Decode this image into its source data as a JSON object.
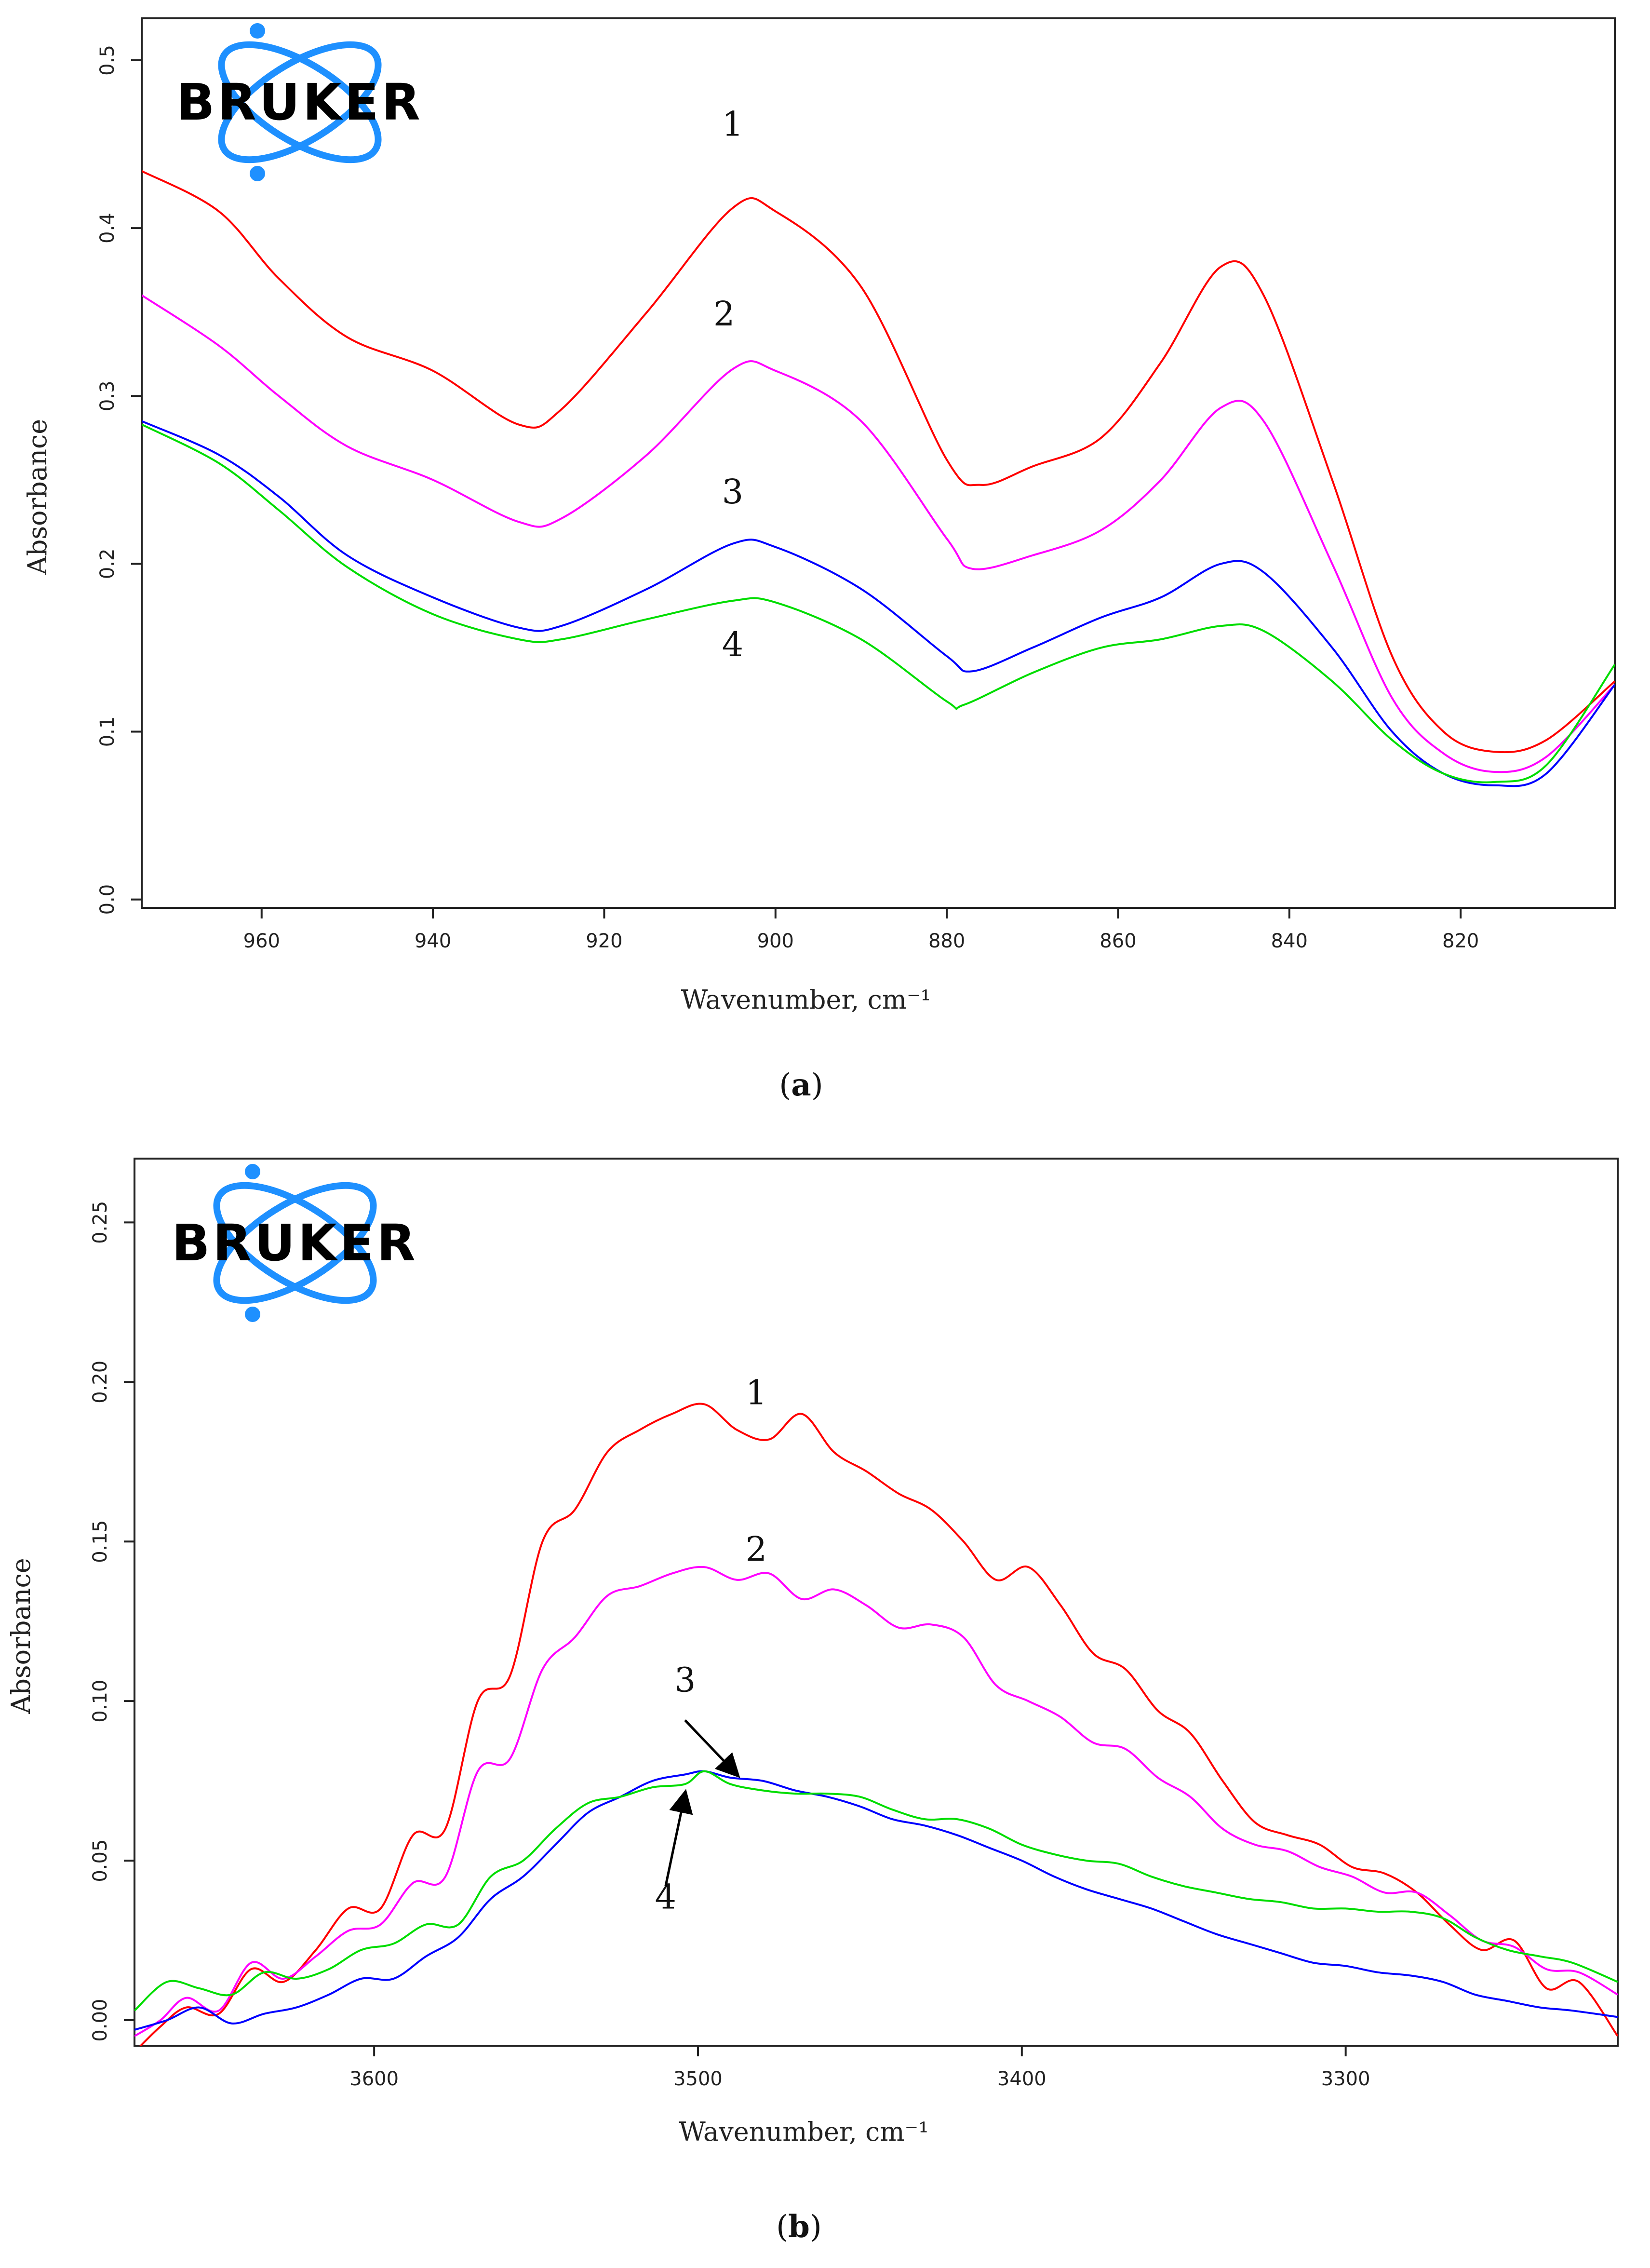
{
  "chart_data": [
    {
      "type": "line",
      "caption": "a",
      "xlabel": "Wavenumber, cm⁻¹",
      "ylabel": "Absorbance",
      "xlim": [
        974,
        802
      ],
      "ylim": [
        -0.005,
        0.525
      ],
      "xticks": [
        960,
        940,
        920,
        900,
        880,
        860,
        840,
        820
      ],
      "xtick_labels": [
        "960",
        "940",
        "920",
        "900",
        "880",
        "860",
        "840",
        "820"
      ],
      "yticks": [
        0.0,
        0.1,
        0.2,
        0.3,
        0.4,
        0.5
      ],
      "ytick_labels": [
        "0.0",
        "0.1",
        "0.2",
        "0.3",
        "0.4",
        "0.5"
      ],
      "logo": "BRUKER",
      "series": [
        {
          "name": "1",
          "color": "#ff0000",
          "x": [
            974,
            965,
            958,
            950,
            940,
            930,
            925,
            915,
            905,
            900,
            890,
            880,
            876,
            870,
            862,
            855,
            848,
            843,
            835,
            828,
            822,
            816,
            810,
            802
          ],
          "y": [
            0.434,
            0.41,
            0.37,
            0.335,
            0.315,
            0.283,
            0.292,
            0.35,
            0.412,
            0.41,
            0.365,
            0.262,
            0.247,
            0.258,
            0.275,
            0.32,
            0.377,
            0.36,
            0.25,
            0.145,
            0.1,
            0.088,
            0.095,
            0.13
          ]
        },
        {
          "name": "2",
          "color": "#ff00ff",
          "x": [
            974,
            965,
            958,
            950,
            940,
            930,
            925,
            915,
            905,
            900,
            890,
            880,
            877,
            870,
            862,
            855,
            848,
            843,
            835,
            828,
            822,
            816,
            810,
            802
          ],
          "y": [
            0.36,
            0.33,
            0.3,
            0.27,
            0.25,
            0.225,
            0.227,
            0.265,
            0.316,
            0.315,
            0.285,
            0.215,
            0.197,
            0.205,
            0.22,
            0.25,
            0.293,
            0.285,
            0.2,
            0.12,
            0.087,
            0.076,
            0.085,
            0.128
          ]
        },
        {
          "name": "3",
          "color": "#0000ff",
          "x": [
            974,
            965,
            958,
            950,
            940,
            930,
            925,
            915,
            905,
            900,
            890,
            880,
            877,
            870,
            862,
            855,
            848,
            843,
            835,
            828,
            822,
            816,
            810,
            802
          ],
          "y": [
            0.285,
            0.265,
            0.24,
            0.205,
            0.18,
            0.162,
            0.163,
            0.185,
            0.212,
            0.21,
            0.185,
            0.145,
            0.136,
            0.15,
            0.168,
            0.18,
            0.2,
            0.195,
            0.15,
            0.1,
            0.075,
            0.068,
            0.075,
            0.128
          ]
        },
        {
          "name": "4",
          "color": "#00dd00",
          "x": [
            974,
            965,
            958,
            950,
            940,
            930,
            925,
            915,
            905,
            900,
            890,
            880,
            878,
            870,
            862,
            855,
            848,
            843,
            835,
            828,
            822,
            816,
            810,
            802
          ],
          "y": [
            0.283,
            0.26,
            0.232,
            0.198,
            0.17,
            0.155,
            0.155,
            0.167,
            0.178,
            0.177,
            0.155,
            0.118,
            0.116,
            0.135,
            0.15,
            0.155,
            0.163,
            0.16,
            0.13,
            0.095,
            0.075,
            0.07,
            0.08,
            0.14
          ]
        }
      ],
      "labels": [
        {
          "text": "1",
          "x": 905,
          "y": 0.455
        },
        {
          "text": "2",
          "x": 906,
          "y": 0.342
        },
        {
          "text": "3",
          "x": 905,
          "y": 0.236
        },
        {
          "text": "4",
          "x": 905,
          "y": 0.145
        }
      ]
    },
    {
      "type": "line",
      "caption": "b",
      "xlabel": "Wavenumber, cm⁻¹",
      "ylabel": "Absorbance",
      "xlim": [
        3674,
        3216
      ],
      "ylim": [
        -0.008,
        0.27
      ],
      "xticks": [
        3600,
        3500,
        3400,
        3300
      ],
      "xtick_labels": [
        "3600",
        "3500",
        "3400",
        "3300"
      ],
      "yticks": [
        0.0,
        0.05,
        0.1,
        0.15,
        0.2,
        0.25
      ],
      "ytick_labels": [
        "0.00",
        "0.05",
        "0.10",
        "0.15",
        "0.20",
        "0.25"
      ],
      "logo": "BRUKER",
      "series": [
        {
          "name": "1",
          "color": "#ff0000",
          "x": [
            3674,
            3666,
            3658,
            3648,
            3638,
            3628,
            3618,
            3608,
            3598,
            3588,
            3578,
            3568,
            3558,
            3548,
            3538,
            3528,
            3518,
            3508,
            3498,
            3488,
            3478,
            3468,
            3458,
            3448,
            3438,
            3428,
            3418,
            3408,
            3398,
            3388,
            3378,
            3368,
            3358,
            3348,
            3338,
            3328,
            3318,
            3308,
            3298,
            3288,
            3278,
            3268,
            3258,
            3248,
            3238,
            3228,
            3216
          ],
          "y": [
            -0.01,
            -0.002,
            0.004,
            0.002,
            0.016,
            0.012,
            0.022,
            0.035,
            0.035,
            0.058,
            0.06,
            0.1,
            0.108,
            0.15,
            0.16,
            0.178,
            0.185,
            0.19,
            0.193,
            0.185,
            0.182,
            0.19,
            0.178,
            0.172,
            0.165,
            0.16,
            0.15,
            0.138,
            0.142,
            0.13,
            0.115,
            0.11,
            0.097,
            0.09,
            0.075,
            0.062,
            0.058,
            0.055,
            0.048,
            0.046,
            0.04,
            0.03,
            0.022,
            0.025,
            0.01,
            0.012,
            -0.005
          ]
        },
        {
          "name": "2",
          "color": "#ff00ff",
          "x": [
            3674,
            3666,
            3658,
            3648,
            3638,
            3628,
            3618,
            3608,
            3598,
            3588,
            3578,
            3568,
            3558,
            3548,
            3538,
            3528,
            3518,
            3508,
            3498,
            3488,
            3478,
            3468,
            3458,
            3448,
            3438,
            3428,
            3418,
            3408,
            3398,
            3388,
            3378,
            3368,
            3358,
            3348,
            3338,
            3328,
            3318,
            3308,
            3298,
            3288,
            3278,
            3268,
            3258,
            3248,
            3238,
            3228,
            3216
          ],
          "y": [
            -0.005,
            0.0,
            0.007,
            0.003,
            0.018,
            0.013,
            0.02,
            0.028,
            0.03,
            0.043,
            0.045,
            0.078,
            0.082,
            0.11,
            0.12,
            0.133,
            0.136,
            0.14,
            0.142,
            0.138,
            0.14,
            0.132,
            0.135,
            0.13,
            0.123,
            0.124,
            0.12,
            0.105,
            0.1,
            0.095,
            0.087,
            0.085,
            0.076,
            0.07,
            0.06,
            0.055,
            0.053,
            0.048,
            0.045,
            0.04,
            0.04,
            0.033,
            0.025,
            0.023,
            0.016,
            0.015,
            0.008
          ]
        },
        {
          "name": "3",
          "color": "#0000ff",
          "x": [
            3674,
            3664,
            3654,
            3644,
            3634,
            3624,
            3614,
            3604,
            3594,
            3584,
            3574,
            3564,
            3554,
            3544,
            3534,
            3524,
            3514,
            3504,
            3498,
            3490,
            3480,
            3470,
            3460,
            3450,
            3440,
            3430,
            3420,
            3410,
            3400,
            3390,
            3380,
            3370,
            3360,
            3350,
            3340,
            3330,
            3320,
            3310,
            3300,
            3290,
            3280,
            3270,
            3260,
            3250,
            3240,
            3230,
            3216
          ],
          "y": [
            -0.003,
            0.0,
            0.004,
            -0.001,
            0.002,
            0.004,
            0.008,
            0.013,
            0.013,
            0.02,
            0.026,
            0.038,
            0.045,
            0.055,
            0.065,
            0.07,
            0.075,
            0.077,
            0.078,
            0.076,
            0.075,
            0.072,
            0.07,
            0.067,
            0.063,
            0.061,
            0.058,
            0.054,
            0.05,
            0.045,
            0.041,
            0.038,
            0.035,
            0.031,
            0.027,
            0.024,
            0.021,
            0.018,
            0.017,
            0.015,
            0.014,
            0.012,
            0.008,
            0.006,
            0.004,
            0.003,
            0.001
          ]
        },
        {
          "name": "4",
          "color": "#00dd00",
          "x": [
            3674,
            3664,
            3654,
            3644,
            3634,
            3624,
            3614,
            3604,
            3594,
            3584,
            3574,
            3564,
            3554,
            3544,
            3534,
            3524,
            3514,
            3504,
            3498,
            3490,
            3480,
            3470,
            3460,
            3450,
            3440,
            3430,
            3420,
            3410,
            3400,
            3390,
            3380,
            3370,
            3360,
            3350,
            3340,
            3330,
            3320,
            3310,
            3300,
            3290,
            3280,
            3270,
            3260,
            3250,
            3240,
            3230,
            3216
          ],
          "y": [
            0.003,
            0.012,
            0.01,
            0.008,
            0.015,
            0.013,
            0.016,
            0.022,
            0.024,
            0.03,
            0.03,
            0.045,
            0.05,
            0.06,
            0.068,
            0.07,
            0.073,
            0.074,
            0.078,
            0.074,
            0.072,
            0.071,
            0.071,
            0.07,
            0.066,
            0.063,
            0.063,
            0.06,
            0.055,
            0.052,
            0.05,
            0.049,
            0.045,
            0.042,
            0.04,
            0.038,
            0.037,
            0.035,
            0.035,
            0.034,
            0.034,
            0.032,
            0.026,
            0.022,
            0.02,
            0.018,
            0.012
          ]
        }
      ],
      "labels": [
        {
          "text": "1",
          "x": 3482,
          "y": 0.193
        },
        {
          "text": "2",
          "x": 3482,
          "y": 0.144
        },
        {
          "text": "3",
          "x": 3504,
          "y": 0.103
        },
        {
          "text": "4",
          "x": 3510,
          "y": 0.035
        }
      ],
      "arrows": [
        {
          "label": "3",
          "from": [
            3504,
            0.094
          ],
          "to": [
            3488,
            0.077
          ]
        },
        {
          "label": "4",
          "from": [
            3510,
            0.042
          ],
          "to": [
            3504,
            0.071
          ]
        }
      ]
    }
  ]
}
